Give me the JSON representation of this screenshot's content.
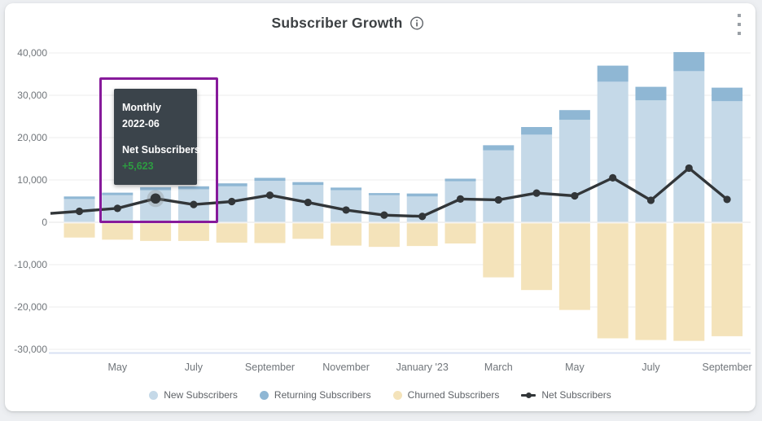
{
  "header": {
    "title": "Subscriber Growth"
  },
  "icons": {
    "info_icon": "circled-i-info",
    "menu_icon": "vertical-kebab-dots"
  },
  "tooltip": {
    "period_label": "Monthly",
    "period_value": "2022-06",
    "series_label": "Net Subscribers",
    "value": "+5,623",
    "background": "#3b444b",
    "text_color": "#ffffff",
    "value_color": "#2d9c41"
  },
  "annotation": {
    "highlight_box_color": "#871a9b"
  },
  "legend": {
    "items": [
      {
        "label": "New Subscribers",
        "marker": "circle",
        "color": "#c5d9e8"
      },
      {
        "label": "Returning Subscribers",
        "marker": "circle",
        "color": "#8fb7d4"
      },
      {
        "label": "Churned Subscribers",
        "marker": "circle",
        "color": "#f4e3ba"
      },
      {
        "label": "Net Subscribers",
        "marker": "line-dot",
        "color": "#323639"
      }
    ]
  },
  "chart_data": {
    "type": "bar",
    "stacked": true,
    "title": "Subscriber Growth",
    "xlabel": "",
    "ylabel": "",
    "grid": true,
    "legend_position": "bottom",
    "ylim": [
      -31000,
      41500
    ],
    "categories": [
      "2022-04",
      "2022-05",
      "2022-06",
      "2022-07",
      "2022-08",
      "2022-09",
      "2022-10",
      "2022-11",
      "2022-12",
      "2023-01",
      "2023-02",
      "2023-03",
      "2023-04",
      "2023-05",
      "2023-06",
      "2023-07",
      "2023-08",
      "2023-09"
    ],
    "x_tick_indices": [
      1,
      3,
      5,
      7,
      9,
      11,
      13,
      15,
      17
    ],
    "x_tick_labels": [
      "May",
      "July",
      "September",
      "November",
      "January '23",
      "March",
      "May",
      "July",
      "September"
    ],
    "y_ticks": [
      {
        "value": 40000,
        "label": "40,000"
      },
      {
        "value": 30000,
        "label": "30,000"
      },
      {
        "value": 20000,
        "label": "20,000"
      },
      {
        "value": 10000,
        "label": "10,000"
      },
      {
        "value": 0,
        "label": "0"
      },
      {
        "value": -10000,
        "label": "-10,000"
      },
      {
        "value": -20000,
        "label": "-20,000"
      },
      {
        "value": -30000,
        "label": "-30,000"
      }
    ],
    "series": [
      {
        "name": "New Subscribers",
        "type": "bar",
        "color": "#c5d9e8",
        "values": [
          5500,
          6400,
          7600,
          7800,
          8500,
          9800,
          8800,
          7600,
          6400,
          6100,
          9700,
          17000,
          20700,
          24200,
          33200,
          28800,
          35700,
          28600
        ]
      },
      {
        "name": "Returning Subscribers",
        "type": "bar",
        "color": "#8fb7d4",
        "values": [
          600,
          600,
          700,
          700,
          700,
          700,
          700,
          600,
          500,
          700,
          600,
          1200,
          1800,
          2300,
          3800,
          3200,
          4500,
          3200
        ]
      },
      {
        "name": "Churned Subscribers",
        "type": "bar",
        "color": "#f4e3ba",
        "values": [
          -3600,
          -4100,
          -4400,
          -4400,
          -4800,
          -4900,
          -3900,
          -5500,
          -5800,
          -5600,
          -5000,
          -13000,
          -16000,
          -20700,
          -27400,
          -27800,
          -28000,
          -26900
        ]
      },
      {
        "name": "Net Subscribers",
        "type": "line",
        "color": "#323639",
        "values": [
          2600,
          3300,
          5623,
          4200,
          4900,
          6400,
          4700,
          2900,
          1700,
          1400,
          5500,
          5300,
          6900,
          6250,
          10500,
          5200,
          12800,
          5400
        ]
      }
    ],
    "lead_in_value": 2100,
    "highlight": {
      "category": "2022-06",
      "index": 2,
      "series": "Net Subscribers",
      "value": 5623
    },
    "colors": {
      "gridline": "#ececec",
      "zero_line": "#e6e6e6",
      "baseline": "#d8e1f3",
      "axis_text": "#70757a",
      "halo": "#8a8a8a"
    }
  }
}
